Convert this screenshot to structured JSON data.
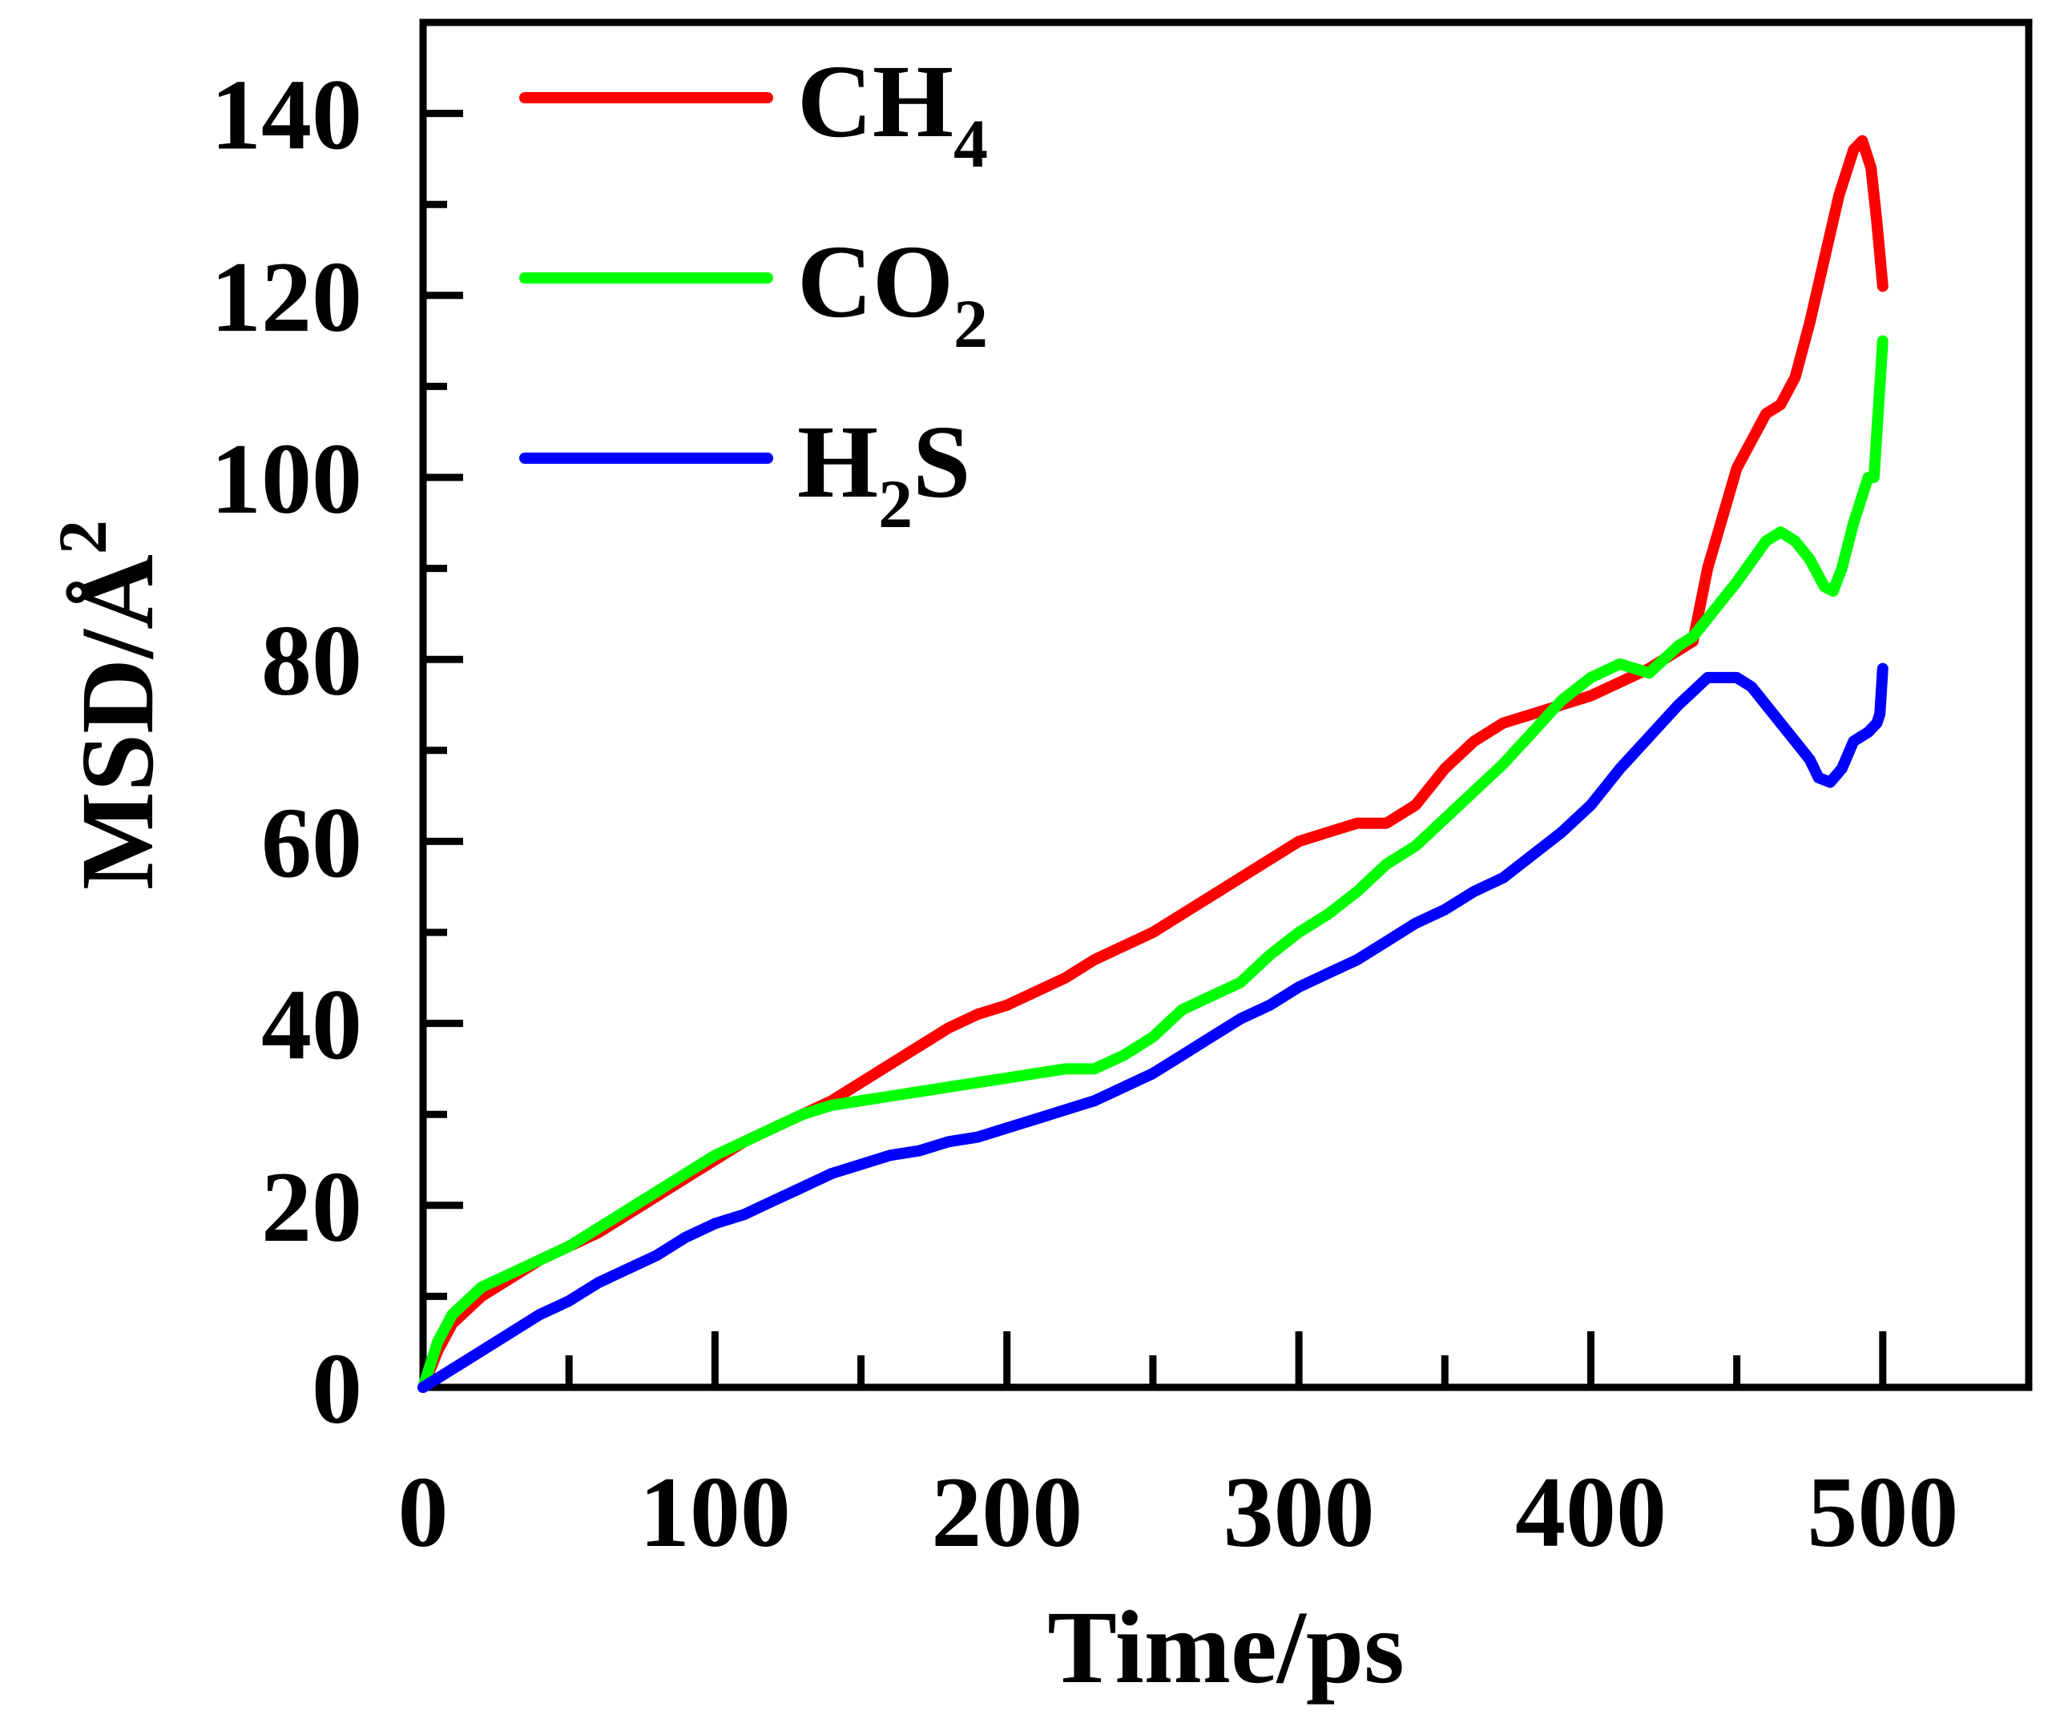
{
  "chart_data": {
    "type": "line",
    "title": "",
    "xlabel": "Time/ps",
    "ylabel": "MSD/Å",
    "ylabel_sup": "2",
    "xlim": [
      0,
      550
    ],
    "ylim": [
      0,
      150
    ],
    "x_ticks": [
      0,
      100,
      200,
      300,
      400,
      500
    ],
    "x_tick_labels": [
      "0",
      "100",
      "200",
      "300",
      "400",
      "500"
    ],
    "x_minor_ticks": [
      50,
      150,
      250,
      350,
      450
    ],
    "y_ticks": [
      0,
      20,
      40,
      60,
      80,
      100,
      120,
      140
    ],
    "y_tick_labels": [
      "0",
      "20",
      "40",
      "60",
      "80",
      "100",
      "120",
      "140"
    ],
    "y_minor_ticks": [
      10,
      30,
      50,
      70,
      90,
      110,
      130
    ],
    "grid": false,
    "legend_position": "top-left",
    "legend": [
      {
        "key": "ch4",
        "base": "CH",
        "sub": "4",
        "suffix": "",
        "color": "#ff0000"
      },
      {
        "key": "co2",
        "base": "CO",
        "sub": "2",
        "suffix": "",
        "color": "#00ff00"
      },
      {
        "key": "h2s",
        "base": "H",
        "sub": "2",
        "suffix": "S",
        "color": "#0000ff"
      }
    ],
    "series": [
      {
        "name": "CH4",
        "color": "#ff0000",
        "x": [
          0,
          5,
          10,
          20,
          30,
          40,
          50,
          60,
          70,
          80,
          90,
          100,
          110,
          120,
          130,
          140,
          150,
          160,
          170,
          180,
          190,
          200,
          210,
          220,
          230,
          240,
          250,
          260,
          270,
          280,
          290,
          300,
          310,
          320,
          330,
          340,
          350,
          360,
          370,
          380,
          390,
          400,
          410,
          420,
          430,
          435,
          440,
          450,
          460,
          465,
          470,
          475,
          480,
          485,
          490,
          493,
          496,
          498,
          500
        ],
        "values": [
          0,
          4,
          7,
          10,
          12,
          14,
          15.5,
          17,
          19,
          21,
          23,
          25,
          27,
          28.5,
          30,
          31.5,
          33.5,
          35.5,
          37.5,
          39.5,
          41,
          42,
          43.5,
          45,
          47,
          48.5,
          50,
          52,
          54,
          56,
          58,
          60,
          61,
          62,
          62,
          64,
          68,
          71,
          73,
          74,
          75,
          76,
          77.5,
          79,
          81,
          82,
          90,
          101,
          107,
          108,
          111,
          117,
          124,
          131,
          136,
          137,
          134,
          128,
          121
        ]
      },
      {
        "name": "CO2",
        "color": "#00ff00",
        "x": [
          0,
          5,
          10,
          20,
          30,
          40,
          50,
          60,
          70,
          80,
          90,
          100,
          110,
          120,
          130,
          140,
          150,
          160,
          170,
          180,
          190,
          200,
          210,
          220,
          230,
          240,
          250,
          260,
          270,
          280,
          290,
          300,
          310,
          320,
          330,
          340,
          350,
          360,
          370,
          380,
          390,
          400,
          410,
          415,
          420,
          425,
          430,
          435,
          440,
          450,
          460,
          465,
          470,
          475,
          480,
          483,
          486,
          490,
          495,
          497,
          500
        ],
        "values": [
          0,
          5,
          8,
          11,
          12.5,
          14,
          15.5,
          17.5,
          19.5,
          21.5,
          23.5,
          25.5,
          27,
          28.5,
          30,
          31,
          31.5,
          32,
          32.5,
          33,
          33.5,
          34,
          34.5,
          35,
          35,
          36.5,
          38.5,
          41.5,
          43,
          44.5,
          47.5,
          50,
          52,
          54.5,
          57.5,
          59.5,
          62.5,
          65.5,
          68.5,
          72,
          75.5,
          78,
          79.5,
          79,
          78.5,
          80,
          81.5,
          82.5,
          84.5,
          88.5,
          93,
          94,
          93,
          91,
          88,
          87.5,
          90,
          95,
          100,
          100,
          115
        ]
      },
      {
        "name": "H2S",
        "color": "#0000ff",
        "x": [
          0,
          10,
          20,
          30,
          40,
          50,
          60,
          70,
          80,
          90,
          100,
          110,
          120,
          130,
          140,
          150,
          160,
          170,
          180,
          190,
          200,
          210,
          220,
          230,
          240,
          250,
          260,
          270,
          280,
          290,
          300,
          310,
          320,
          330,
          340,
          350,
          360,
          370,
          380,
          390,
          400,
          410,
          420,
          430,
          435,
          440,
          445,
          450,
          455,
          460,
          465,
          470,
          475,
          478,
          482,
          486,
          490,
          495,
          498,
          499,
          500
        ],
        "values": [
          0,
          2,
          4,
          6,
          8,
          9.5,
          11.5,
          13,
          14.5,
          16.5,
          18,
          19,
          20.5,
          22,
          23.5,
          24.5,
          25.5,
          26,
          27,
          27.5,
          28.5,
          29.5,
          30.5,
          31.5,
          33,
          34.5,
          36.5,
          38.5,
          40.5,
          42,
          44,
          45.5,
          47,
          49,
          51,
          52.5,
          54.5,
          56,
          58.5,
          61,
          64,
          68,
          71.5,
          75,
          76.5,
          78,
          78,
          78,
          77,
          75,
          73,
          71,
          69,
          67,
          66.5,
          68,
          71,
          72,
          73,
          74,
          79
        ]
      }
    ]
  }
}
